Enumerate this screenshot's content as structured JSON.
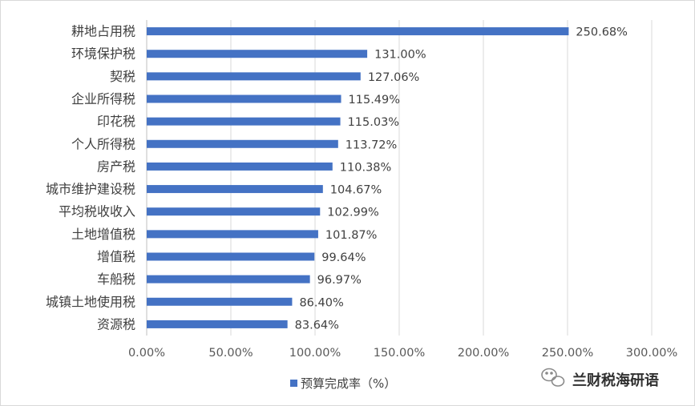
{
  "chart_data": {
    "type": "bar",
    "orientation": "horizontal",
    "categories": [
      "耕地占用税",
      "环境保护税",
      "契税",
      "企业所得税",
      "印花税",
      "个人所得税",
      "房产税",
      "城市维护建设税",
      "平均税收收入",
      "土地增值税",
      "增值税",
      "车船税",
      "城镇土地使用税",
      "资源税"
    ],
    "series": [
      {
        "name": "预算完成率（%）",
        "values": [
          250.68,
          131.0,
          127.06,
          115.49,
          115.03,
          113.72,
          110.38,
          104.67,
          102.99,
          101.87,
          99.64,
          96.97,
          86.4,
          83.64
        ],
        "data_labels": [
          "250.68%",
          "131.00%",
          "127.06%",
          "115.49%",
          "115.03%",
          "113.72%",
          "110.38%",
          "104.67%",
          "102.99%",
          "101.87%",
          "99.64%",
          "96.97%",
          "86.40%",
          "83.64%"
        ],
        "color": "#4472c4"
      }
    ],
    "highlight": {
      "category": "平均税收收入",
      "label_color": "#ff0000"
    },
    "xlim": [
      0,
      300
    ],
    "xticks": [
      0,
      50,
      100,
      150,
      200,
      250,
      300
    ],
    "xtick_labels": [
      "0.00%",
      "50.00%",
      "100.00%",
      "150.00%",
      "200.00%",
      "250.00%",
      "300.00%"
    ],
    "grid": "vertical",
    "legend": {
      "position": "bottom",
      "label": "预算完成率（%）"
    },
    "colors": {
      "bar": "#4472c4",
      "grid": "#d9d9d9",
      "highlight_label": "#ff0000"
    }
  },
  "watermark": {
    "icon": "wechat-icon",
    "text": "兰财税海研语"
  }
}
